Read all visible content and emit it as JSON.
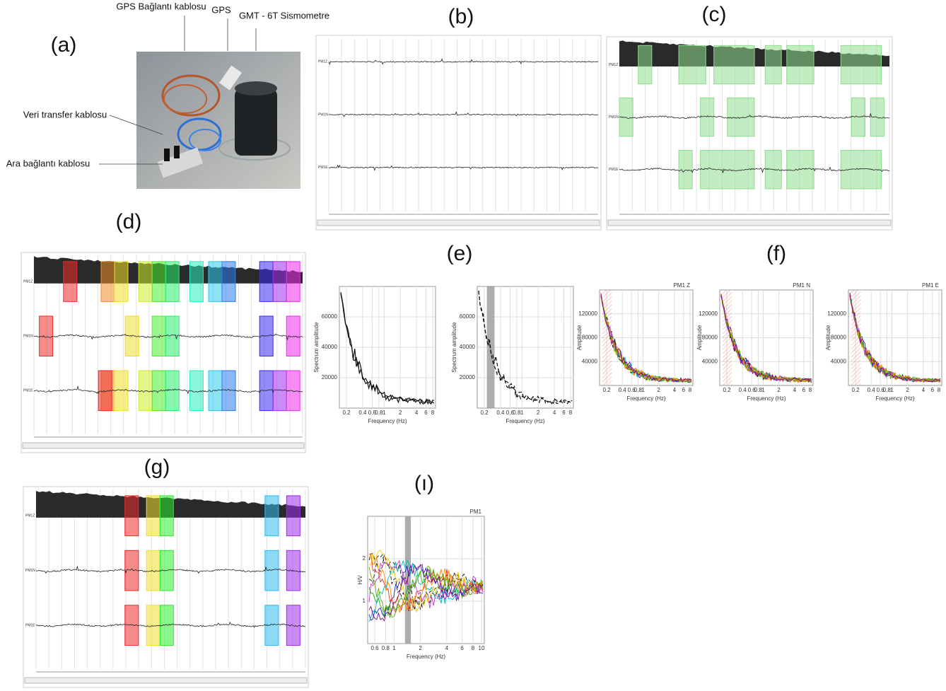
{
  "panel_labels": [
    "(a)",
    "(b)",
    "(c)",
    "(d)",
    "(e)",
    "(f)",
    "(g)",
    "(ı)"
  ],
  "photo": {
    "labels": [
      "GPS Bağlantı kablosu",
      "GPS",
      "GMT - 6T Sismometre",
      "Veri transfer kablosu",
      "Ara bağlantı kablosu"
    ]
  },
  "records": {
    "channels": [
      "PM1Z",
      "PM1N",
      "PM1E"
    ]
  },
  "spectra": {
    "y_label": "Spectrum amplitude",
    "x_label": "Frequency (Hz)",
    "yticks": [
      60000,
      40000,
      20000
    ],
    "xticks": [
      0.2,
      0.4,
      0.6,
      0.8,
      1,
      2,
      4,
      6,
      8
    ]
  },
  "components": {
    "titles": [
      "PM1 Z",
      "PM1 N",
      "PM1 E"
    ],
    "y_label": "Amplitude",
    "x_label": "Frequency (Hz)",
    "yticks": [
      120000,
      80000,
      40000
    ],
    "xticks": [
      0.2,
      0.4,
      0.6,
      0.8,
      1,
      2,
      4,
      6,
      8
    ]
  },
  "hv": {
    "title": "PM1",
    "y_label": "H/V",
    "x_label": "Frequency (Hz)",
    "yticks": [
      2,
      1
    ],
    "xticks": [
      0.6,
      0.8,
      1,
      2,
      4,
      6,
      8,
      10
    ]
  }
}
